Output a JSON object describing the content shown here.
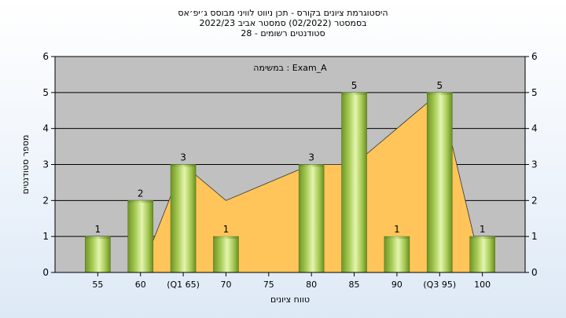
{
  "titles": {
    "line1": "היסטוגרמת ציונים בקורס - תכן ניווט לוויני מבוסס ג׳יפ׳אס",
    "line2": "בסמסטר  (02/2022)  סמסטר אביב 2022/23",
    "line3": "סטודנטים רשומים - 28"
  },
  "chart_data": {
    "type": "bar",
    "categories": [
      "55",
      "60",
      "(Q1 65)",
      "70",
      "75",
      "80",
      "85",
      "90",
      "(Q3 95)",
      "100"
    ],
    "values": [
      1,
      2,
      3,
      1,
      0,
      3,
      5,
      1,
      5,
      1
    ],
    "data_labels": [
      "1",
      "2",
      "3",
      "1",
      "",
      "3",
      "5",
      "1",
      "5",
      "1"
    ],
    "area_series": {
      "type": "area",
      "values": [
        0,
        0,
        3,
        2,
        2.5,
        3,
        3,
        4,
        5,
        0
      ]
    },
    "xlabel": "טווח ציונים",
    "ylabel": "מספר סטודנטים",
    "ylim": [
      0,
      6
    ],
    "yticks": [
      0,
      1,
      2,
      3,
      4,
      5,
      6
    ],
    "annotation": "במשימה : Exam_A",
    "grid": true,
    "colors": {
      "plot_bg": "#c0c0c0",
      "area": "#ffc55a",
      "bar_dark": "#7a9e2e",
      "bar_light": "#e4f5b0",
      "gridline": "#000000"
    }
  }
}
